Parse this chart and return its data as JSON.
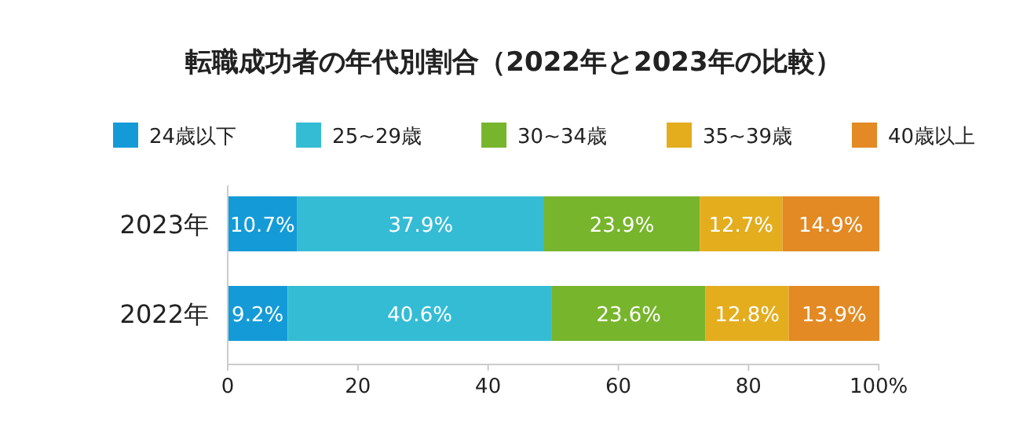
{
  "chart_data": {
    "type": "bar",
    "orientation": "horizontal",
    "stacked": true,
    "title": "転職成功者の年代別割合（2022年と2023年の比較）",
    "categories": [
      "2023年",
      "2022年"
    ],
    "series": [
      {
        "name": "24歳以下",
        "color": "#149bd7",
        "values": [
          10.7,
          9.2
        ],
        "value_labels": [
          "10.7%",
          "9.2%"
        ]
      },
      {
        "name": "25~29歳",
        "color": "#35bcd5",
        "values": [
          37.9,
          40.6
        ],
        "value_labels": [
          "37.9%",
          "40.6%"
        ]
      },
      {
        "name": "30~34歳",
        "color": "#77b52c",
        "values": [
          23.9,
          23.6
        ],
        "value_labels": [
          "23.9%",
          "23.6%"
        ]
      },
      {
        "name": "35~39歳",
        "color": "#e4ad1e",
        "values": [
          12.7,
          12.8
        ],
        "value_labels": [
          "12.7%",
          "12.8%"
        ]
      },
      {
        "name": "40歳以上",
        "color": "#e38a24",
        "values": [
          14.9,
          13.9
        ],
        "value_labels": [
          "14.9%",
          "13.9%"
        ]
      }
    ],
    "xlim": [
      0,
      100.1
    ],
    "xticks": [
      0,
      20,
      40,
      60,
      80,
      {
        "value": 100,
        "label": "100%"
      }
    ],
    "legend": "top",
    "grid": false
  }
}
